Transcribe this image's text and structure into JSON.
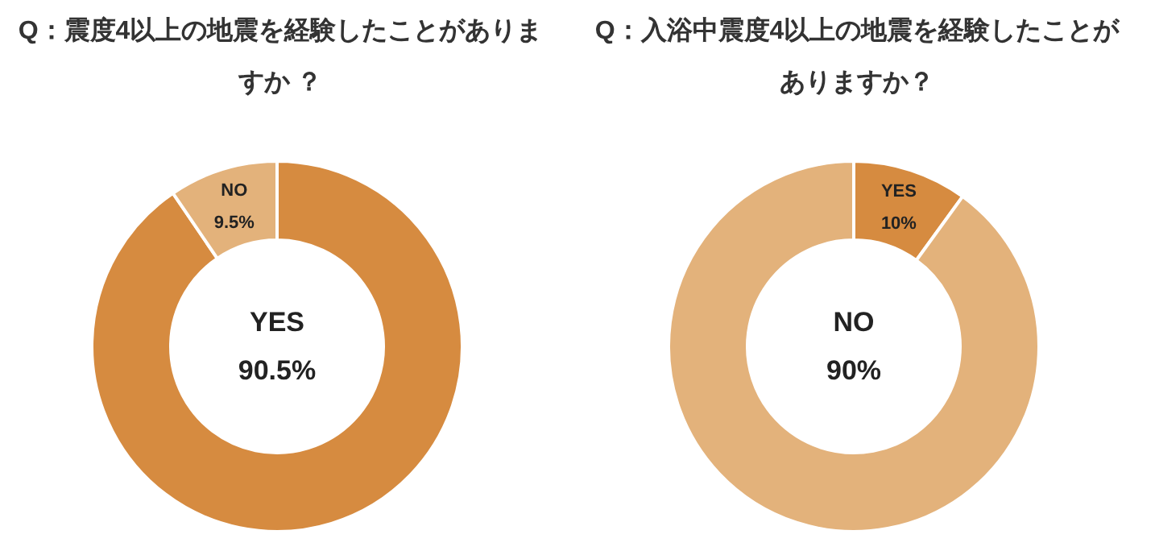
{
  "chart_data": [
    {
      "type": "donut",
      "title": "Q：震度4以上の地震を経験したことがありますか ？",
      "categories": [
        "YES",
        "NO"
      ],
      "values": [
        90.5,
        9.5
      ],
      "colors": [
        "#d68b40",
        "#e3b27b"
      ],
      "value_labels": [
        "90.5%",
        "9.5%"
      ]
    },
    {
      "type": "donut",
      "title": "Q：入浴中震度4以上の地震を経験したことがありますか？",
      "categories": [
        "YES",
        "NO"
      ],
      "values": [
        10,
        90
      ],
      "colors": [
        "#d68b40",
        "#e3b27b"
      ],
      "value_labels": [
        "10%",
        "90%"
      ]
    }
  ]
}
